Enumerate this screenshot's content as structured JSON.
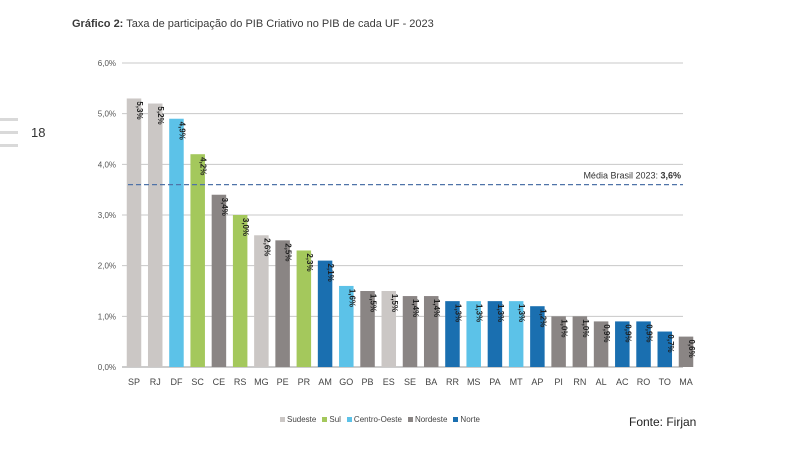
{
  "header": {
    "title_prefix": "Gráfico 2:",
    "title_text": " Taxa de participação do PIB Criativo no PIB de cada UF - 2023",
    "page_number": "18"
  },
  "chart_data": {
    "type": "bar",
    "categories": [
      "SP",
      "RJ",
      "DF",
      "SC",
      "CE",
      "RS",
      "MG",
      "PE",
      "PR",
      "AM",
      "GO",
      "PB",
      "ES",
      "SE",
      "BA",
      "RR",
      "MS",
      "PA",
      "MT",
      "AP",
      "PI",
      "RN",
      "AL",
      "AC",
      "RO",
      "TO",
      "MA"
    ],
    "values": [
      5.3,
      5.2,
      4.9,
      4.2,
      3.4,
      3.0,
      2.6,
      2.5,
      2.3,
      2.1,
      1.6,
      1.5,
      1.5,
      1.4,
      1.4,
      1.3,
      1.3,
      1.3,
      1.3,
      1.2,
      1.0,
      1.0,
      0.9,
      0.9,
      0.9,
      0.7,
      0.6
    ],
    "value_labels": [
      "5,3%",
      "5,2%",
      "4,9%",
      "4,2%",
      "3,4%",
      "3,0%",
      "2,6%",
      "2,5%",
      "2,3%",
      "2,1%",
      "1,6%",
      "1,5%",
      "1,5%",
      "1,4%",
      "1,4%",
      "1,3%",
      "1,3%",
      "1,3%",
      "1,3%",
      "1,2%",
      "1,0%",
      "1,0%",
      "0,9%",
      "0,9%",
      "0,9%",
      "0,7%",
      "0,6%"
    ],
    "regions": [
      "Sudeste",
      "Sudeste",
      "Centro-Oeste",
      "Sul",
      "Nordeste",
      "Sul",
      "Sudeste",
      "Nordeste",
      "Sul",
      "Norte",
      "Centro-Oeste",
      "Nordeste",
      "Sudeste",
      "Nordeste",
      "Nordeste",
      "Norte",
      "Centro-Oeste",
      "Norte",
      "Centro-Oeste",
      "Norte",
      "Nordeste",
      "Nordeste",
      "Nordeste",
      "Norte",
      "Norte",
      "Norte",
      "Nordeste"
    ],
    "yticks": [
      0,
      1,
      2,
      3,
      4,
      5,
      6
    ],
    "ytick_labels": [
      "0,0%",
      "1,0%",
      "2,0%",
      "3,0%",
      "4,0%",
      "5,0%",
      "6,0%"
    ],
    "ylim": [
      0,
      6
    ],
    "grid": true,
    "reference_line": {
      "value": 3.6,
      "label_prefix": "Média Brasil 2023: ",
      "label_value": "3,6%"
    },
    "legend": [
      {
        "name": "Sudeste",
        "color": "#cbc7c5"
      },
      {
        "name": "Sul",
        "color": "#a4c85c"
      },
      {
        "name": "Centro-Oeste",
        "color": "#5cc2e8"
      },
      {
        "name": "Nordeste",
        "color": "#8a8584"
      },
      {
        "name": "Norte",
        "color": "#1a6fb0"
      }
    ],
    "legend_position": "bottom"
  },
  "footer": {
    "source": "Fonte: Firjan"
  }
}
